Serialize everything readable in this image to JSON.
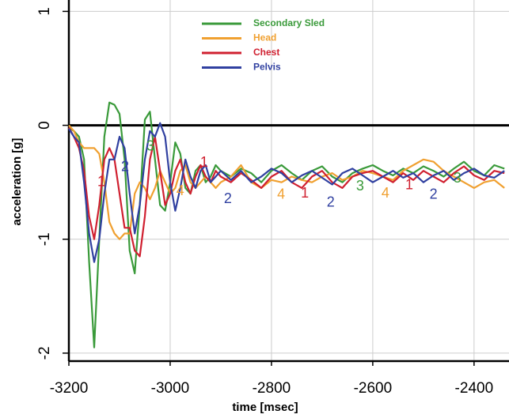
{
  "chart_data": {
    "type": "line",
    "xlabel": "time [msec]",
    "ylabel": "acceleration [g]",
    "x": [
      -3200,
      -3190,
      -3180,
      -3170,
      -3160,
      -3150,
      -3140,
      -3130,
      -3120,
      -3110,
      -3100,
      -3090,
      -3080,
      -3070,
      -3060,
      -3050,
      -3040,
      -3030,
      -3020,
      -3010,
      -3000,
      -2990,
      -2980,
      -2970,
      -2960,
      -2950,
      -2940,
      -2930,
      -2920,
      -2910,
      -2900,
      -2880,
      -2860,
      -2840,
      -2820,
      -2800,
      -2780,
      -2760,
      -2740,
      -2720,
      -2700,
      -2680,
      -2660,
      -2640,
      -2620,
      -2600,
      -2580,
      -2560,
      -2540,
      -2520,
      -2500,
      -2480,
      -2460,
      -2440,
      -2420,
      -2400,
      -2380,
      -2360,
      -2340
    ],
    "series": [
      {
        "name": "Secondary Sled",
        "color": "#3a9a3a",
        "values": [
          -0.02,
          -0.05,
          -0.1,
          -0.3,
          -1.2,
          -1.95,
          -1.0,
          -0.1,
          0.2,
          0.18,
          0.1,
          -0.3,
          -1.1,
          -1.3,
          -0.7,
          0.05,
          0.12,
          -0.3,
          -0.7,
          -0.75,
          -0.5,
          -0.15,
          -0.25,
          -0.55,
          -0.6,
          -0.4,
          -0.35,
          -0.5,
          -0.45,
          -0.35,
          -0.4,
          -0.45,
          -0.38,
          -0.42,
          -0.5,
          -0.4,
          -0.35,
          -0.42,
          -0.48,
          -0.4,
          -0.36,
          -0.45,
          -0.5,
          -0.42,
          -0.38,
          -0.35,
          -0.4,
          -0.44,
          -0.38,
          -0.42,
          -0.36,
          -0.4,
          -0.45,
          -0.38,
          -0.32,
          -0.4,
          -0.44,
          -0.35,
          -0.38
        ]
      },
      {
        "name": "Head",
        "color": "#f0a030",
        "values": [
          0,
          -0.05,
          -0.15,
          -0.2,
          -0.2,
          -0.2,
          -0.25,
          -0.5,
          -0.85,
          -0.95,
          -1.0,
          -0.95,
          -0.95,
          -0.6,
          -0.5,
          -0.55,
          -0.65,
          -0.55,
          -0.4,
          -0.5,
          -0.6,
          -0.55,
          -0.4,
          -0.35,
          -0.5,
          -0.55,
          -0.5,
          -0.45,
          -0.5,
          -0.55,
          -0.5,
          -0.45,
          -0.35,
          -0.5,
          -0.55,
          -0.48,
          -0.5,
          -0.45,
          -0.48,
          -0.5,
          -0.45,
          -0.42,
          -0.48,
          -0.45,
          -0.4,
          -0.42,
          -0.45,
          -0.48,
          -0.4,
          -0.35,
          -0.3,
          -0.32,
          -0.4,
          -0.45,
          -0.5,
          -0.55,
          -0.5,
          -0.48,
          -0.55
        ]
      },
      {
        "name": "Chest",
        "color": "#d02030",
        "values": [
          -0.02,
          -0.1,
          -0.2,
          -0.4,
          -0.8,
          -1.0,
          -0.7,
          -0.3,
          -0.2,
          -0.3,
          -0.6,
          -0.9,
          -0.9,
          -1.1,
          -1.15,
          -0.8,
          -0.3,
          -0.1,
          -0.4,
          -0.7,
          -0.6,
          -0.4,
          -0.3,
          -0.5,
          -0.6,
          -0.45,
          -0.35,
          -0.45,
          -0.5,
          -0.4,
          -0.45,
          -0.5,
          -0.42,
          -0.48,
          -0.55,
          -0.45,
          -0.4,
          -0.5,
          -0.55,
          -0.45,
          -0.4,
          -0.5,
          -0.55,
          -0.45,
          -0.42,
          -0.4,
          -0.45,
          -0.5,
          -0.42,
          -0.48,
          -0.4,
          -0.45,
          -0.5,
          -0.42,
          -0.36,
          -0.44,
          -0.48,
          -0.4,
          -0.42
        ]
      },
      {
        "name": "Pelvis",
        "color": "#3040a0",
        "values": [
          -0.03,
          -0.1,
          -0.15,
          -0.5,
          -0.95,
          -1.2,
          -1.0,
          -0.6,
          -0.3,
          -0.3,
          -0.1,
          -0.2,
          -0.6,
          -0.95,
          -0.7,
          -0.3,
          -0.05,
          -0.1,
          0.02,
          -0.1,
          -0.5,
          -0.75,
          -0.55,
          -0.3,
          -0.45,
          -0.55,
          -0.4,
          -0.35,
          -0.5,
          -0.45,
          -0.4,
          -0.48,
          -0.4,
          -0.5,
          -0.45,
          -0.38,
          -0.42,
          -0.5,
          -0.44,
          -0.4,
          -0.46,
          -0.52,
          -0.42,
          -0.38,
          -0.44,
          -0.5,
          -0.45,
          -0.4,
          -0.46,
          -0.42,
          -0.5,
          -0.44,
          -0.4,
          -0.48,
          -0.42,
          -0.38,
          -0.44,
          -0.46,
          -0.4
        ]
      }
    ],
    "annotations": [
      {
        "text": "3",
        "x": -3039,
        "y": -0.19,
        "color": "#3a9a3a"
      },
      {
        "text": "2",
        "x": -3089,
        "y": -0.37,
        "color": "#3040a0"
      },
      {
        "text": "1",
        "x": -3136,
        "y": -0.5,
        "color": "#d02030"
      },
      {
        "text": "4",
        "x": -2980,
        "y": -0.58,
        "color": "#f0a030"
      },
      {
        "text": "1",
        "x": -2933,
        "y": -0.33,
        "color": "#d02030"
      },
      {
        "text": "2",
        "x": -2886,
        "y": -0.65,
        "color": "#3040a0"
      },
      {
        "text": "4",
        "x": -2781,
        "y": -0.61,
        "color": "#f0a030"
      },
      {
        "text": "1",
        "x": -2734,
        "y": -0.6,
        "color": "#d02030"
      },
      {
        "text": "2",
        "x": -2683,
        "y": -0.68,
        "color": "#3040a0"
      },
      {
        "text": "3",
        "x": -2625,
        "y": -0.54,
        "color": "#3a9a3a"
      },
      {
        "text": "4",
        "x": -2575,
        "y": -0.6,
        "color": "#f0a030"
      },
      {
        "text": "1",
        "x": -2528,
        "y": -0.53,
        "color": "#d02030"
      },
      {
        "text": "2",
        "x": -2480,
        "y": -0.61,
        "color": "#3040a0"
      },
      {
        "text": "3",
        "x": -2433,
        "y": -0.47,
        "color": "#3a9a3a"
      }
    ],
    "xlim": [
      -3200,
      -2331
    ],
    "xticks": [
      -3200,
      -3000,
      -2800,
      -2600,
      -2400
    ],
    "ylim": [
      -2.07,
      1.1
    ],
    "yticks": [
      1,
      0,
      -1,
      -2
    ],
    "grid": true
  }
}
